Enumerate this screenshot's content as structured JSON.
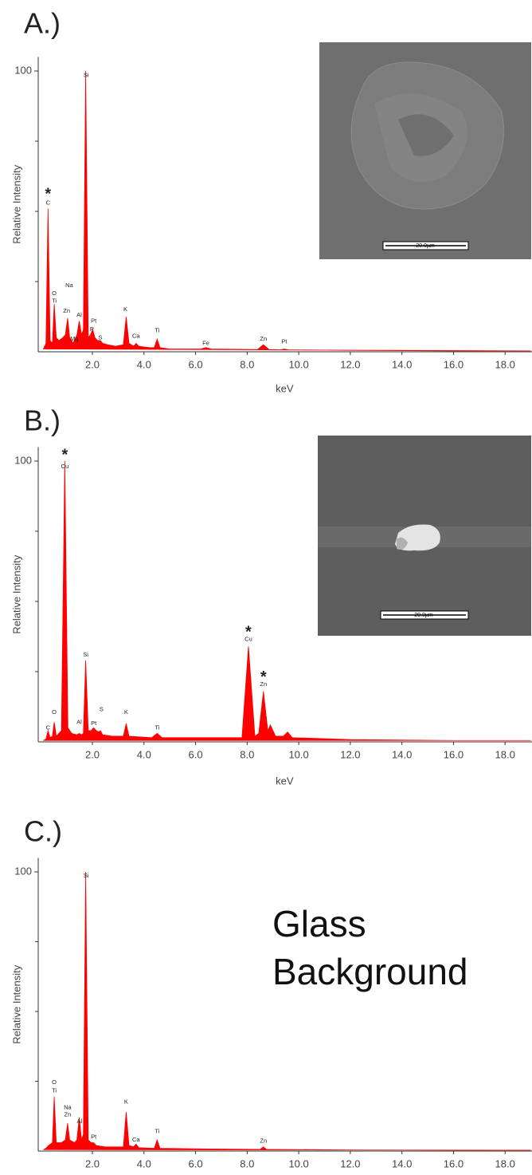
{
  "chart_data": [
    {
      "type": "area",
      "title": "A.)",
      "ylabel": "Relative Intensity",
      "xlabel": "keV",
      "color": "#ff0000",
      "x": [
        0.1,
        0.2,
        0.28,
        0.36,
        0.45,
        0.52,
        0.6,
        0.7,
        0.85,
        0.95,
        1.04,
        1.12,
        1.2,
        1.25,
        1.3,
        1.4,
        1.49,
        1.58,
        1.65,
        1.74,
        1.84,
        1.92,
        2.01,
        2.1,
        2.2,
        2.31,
        2.4,
        2.6,
        2.9,
        3.2,
        3.31,
        3.42,
        3.6,
        3.69,
        3.8,
        4.2,
        4.4,
        4.51,
        4.62,
        5.0,
        6.2,
        6.4,
        6.6,
        8.4,
        8.63,
        8.85,
        9.3,
        9.44,
        9.6,
        12,
        16,
        19
      ],
      "values": [
        1,
        3,
        51,
        4,
        3,
        17,
        5,
        4,
        5,
        6,
        12,
        5,
        4,
        3,
        4,
        6,
        11,
        6,
        8,
        100,
        5,
        6,
        8,
        5,
        4,
        4,
        3,
        2.5,
        2,
        2.5,
        12.5,
        3,
        2,
        3,
        2,
        1.5,
        1.5,
        4.5,
        1.5,
        1,
        1,
        1.5,
        1,
        0.8,
        2.5,
        0.8,
        0.7,
        1,
        0.7,
        0.5,
        0.3,
        0.3
      ],
      "xlim": [
        -0.1,
        19
      ],
      "ylim": [
        0,
        105
      ],
      "xticks": [
        {
          "value": 2,
          "label": "2.0"
        },
        {
          "value": 4,
          "label": "4.0"
        },
        {
          "value": 6,
          "label": "6.0"
        },
        {
          "value": 8,
          "label": "8.0"
        },
        {
          "value": 10,
          "label": "10.0"
        },
        {
          "value": 12,
          "label": "12.0"
        },
        {
          "value": 14,
          "label": "14.0"
        },
        {
          "value": 16,
          "label": "16.0"
        },
        {
          "value": 18,
          "label": "18.0"
        }
      ],
      "yticks": [
        100
      ],
      "yminorticks": [
        25,
        50,
        75
      ],
      "annotations": [
        {
          "text": "C",
          "x": 0.28,
          "y": 53
        },
        {
          "text": "O",
          "x": 0.52,
          "y": 20.7
        },
        {
          "text": "Ti",
          "x": 0.52,
          "y": 18
        },
        {
          "text": "Na",
          "x": 1.1,
          "y": 23.6
        },
        {
          "text": "Zn",
          "x": 1.0,
          "y": 14.5
        },
        {
          "text": "Mg",
          "x": 1.3,
          "y": 4.5
        },
        {
          "text": "Al",
          "x": 1.49,
          "y": 13
        },
        {
          "text": "Si",
          "x": 1.76,
          "y": 98.5
        },
        {
          "text": "Pt",
          "x": 2.05,
          "y": 11
        },
        {
          "text": "P",
          "x": 1.98,
          "y": 8
        },
        {
          "text": "S",
          "x": 2.31,
          "y": 5
        },
        {
          "text": "K",
          "x": 3.28,
          "y": 15
        },
        {
          "text": "Ca",
          "x": 3.69,
          "y": 5.5
        },
        {
          "text": "Ti",
          "x": 4.51,
          "y": 7.5
        },
        {
          "text": "Fe",
          "x": 6.4,
          "y": 3
        },
        {
          "text": "Zn",
          "x": 8.63,
          "y": 4.5
        },
        {
          "text": "Pt",
          "x": 9.44,
          "y": 3.5
        }
      ],
      "asterisk": "*",
      "starred": [
        {
          "x": 0.28,
          "y": 57
        }
      ],
      "inset_scale_label": "20.0µm"
    },
    {
      "type": "area",
      "title": "B.)",
      "ylabel": "Relative Intensity",
      "xlabel": "keV",
      "color": "#ff0000",
      "x": [
        0.1,
        0.2,
        0.28,
        0.36,
        0.45,
        0.52,
        0.6,
        0.8,
        0.93,
        1.05,
        1.2,
        1.4,
        1.49,
        1.58,
        1.65,
        1.74,
        1.84,
        1.95,
        2.05,
        2.15,
        2.25,
        2.31,
        2.4,
        2.8,
        3.2,
        3.31,
        3.42,
        4.3,
        4.51,
        4.7,
        6,
        7.8,
        8.05,
        8.3,
        8.45,
        8.63,
        8.8,
        8.9,
        9.1,
        9.4,
        9.57,
        9.75,
        12,
        16,
        19
      ],
      "values": [
        0.5,
        1,
        4,
        1.5,
        2,
        7,
        2,
        4,
        100,
        5,
        3,
        2.5,
        3,
        2.5,
        3,
        29,
        4,
        4,
        5,
        4,
        3.5,
        4,
        2.5,
        2,
        2,
        6.5,
        2,
        1.5,
        3,
        1.5,
        1.5,
        1.5,
        34,
        2,
        3,
        18,
        4,
        6,
        2,
        2,
        3.5,
        1.5,
        0.8,
        0.5,
        0.5
      ],
      "xlim": [
        -0.1,
        19
      ],
      "ylim": [
        0,
        105
      ],
      "xticks": [
        {
          "value": 2,
          "label": "2.0"
        },
        {
          "value": 4,
          "label": "4.0"
        },
        {
          "value": 6,
          "label": "6.0"
        },
        {
          "value": 8,
          "label": "8.0"
        },
        {
          "value": 10,
          "label": "10.0"
        },
        {
          "value": 12,
          "label": "12.0"
        },
        {
          "value": 14,
          "label": "14.0"
        },
        {
          "value": 16,
          "label": "16.0"
        },
        {
          "value": 18,
          "label": "18.0"
        }
      ],
      "yticks": [
        100
      ],
      "yminorticks": [
        25,
        50,
        75
      ],
      "annotations": [
        {
          "text": "Cu",
          "x": 0.93,
          "y": 98
        },
        {
          "text": "C",
          "x": 0.28,
          "y": 5
        },
        {
          "text": "O",
          "x": 0.52,
          "y": 10.5
        },
        {
          "text": "Si",
          "x": 1.74,
          "y": 31
        },
        {
          "text": "Al",
          "x": 1.49,
          "y": 7
        },
        {
          "text": "Pt",
          "x": 2.05,
          "y": 6.5
        },
        {
          "text": "S",
          "x": 2.35,
          "y": 11.5
        },
        {
          "text": "K",
          "x": 3.31,
          "y": 10.5
        },
        {
          "text": "Ti",
          "x": 4.51,
          "y": 5
        },
        {
          "text": "Cu",
          "x": 8.05,
          "y": 36.5
        },
        {
          "text": "Zn",
          "x": 8.63,
          "y": 20.5
        }
      ],
      "asterisk": "*",
      "starred": [
        {
          "x": 0.93,
          "y": 103
        },
        {
          "x": 8.05,
          "y": 40
        },
        {
          "x": 8.63,
          "y": 24
        }
      ],
      "inset_scale_label": "20.0µm"
    },
    {
      "type": "area",
      "title": "C.)",
      "ylabel": "Relative Intensity",
      "color": "#ff0000",
      "x": [
        0.1,
        0.2,
        0.3,
        0.45,
        0.52,
        0.6,
        0.8,
        0.95,
        1.04,
        1.12,
        1.3,
        1.4,
        1.49,
        1.58,
        1.65,
        1.74,
        1.84,
        1.95,
        2.05,
        2.15,
        2.5,
        3.2,
        3.31,
        3.42,
        3.6,
        3.69,
        3.8,
        4.4,
        4.51,
        4.62,
        6,
        8.5,
        8.63,
        8.75,
        12,
        16,
        19
      ],
      "values": [
        0.5,
        1,
        2,
        3,
        19.5,
        3,
        3,
        4,
        10,
        4,
        3,
        4,
        12,
        4,
        6,
        100,
        4,
        3,
        3,
        2,
        1.5,
        1.5,
        14,
        2,
        1.5,
        2.5,
        1.2,
        1,
        4,
        1,
        0.8,
        0.6,
        1.5,
        0.6,
        0.4,
        0.3,
        0.3
      ],
      "xlim": [
        -0.1,
        19
      ],
      "ylim": [
        0,
        105
      ],
      "xticks": [
        {
          "value": 2,
          "label": "2.0"
        },
        {
          "value": 4,
          "label": "4.0"
        },
        {
          "value": 6,
          "label": "6.0"
        },
        {
          "value": 8,
          "label": "8.0"
        },
        {
          "value": 10,
          "label": "10.0"
        },
        {
          "value": 12,
          "label": "12.0"
        },
        {
          "value": 14,
          "label": "14.0"
        },
        {
          "value": 16,
          "label": "16.0"
        },
        {
          "value": 18,
          "label": "18.0"
        }
      ],
      "yticks": [
        100
      ],
      "yminorticks": [
        25,
        50,
        75
      ],
      "annotations": [
        {
          "text": "O",
          "x": 0.52,
          "y": 24.5
        },
        {
          "text": "Ti",
          "x": 0.52,
          "y": 21.5
        },
        {
          "text": "Na",
          "x": 1.04,
          "y": 15.5
        },
        {
          "text": "Zn",
          "x": 1.04,
          "y": 13
        },
        {
          "text": "Al",
          "x": 1.5,
          "y": 10.5
        },
        {
          "text": "Si",
          "x": 1.76,
          "y": 98.5
        },
        {
          "text": "Pt",
          "x": 2.05,
          "y": 5
        },
        {
          "text": "K",
          "x": 3.31,
          "y": 17.5
        },
        {
          "text": "Ca",
          "x": 3.69,
          "y": 4
        },
        {
          "text": "Ti",
          "x": 4.51,
          "y": 7
        },
        {
          "text": "Zn",
          "x": 8.63,
          "y": 3.5
        }
      ],
      "note": [
        "Glass",
        "Background"
      ]
    }
  ]
}
